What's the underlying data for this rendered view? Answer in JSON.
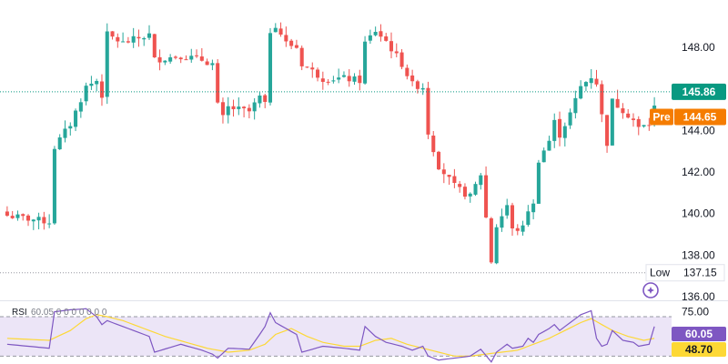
{
  "chart_data": [
    {
      "type": "candlestick",
      "y_axis_ticks": [
        "148.00",
        "146.00",
        "144.00",
        "142.00",
        "140.00",
        "138.00",
        "136.00"
      ],
      "ylim": [
        136,
        150.1
      ],
      "colors": {
        "up": "#26a69a",
        "down": "#ef5350",
        "last_price": "#089981",
        "premarket": "#f57c00",
        "low_line": "#9598a1"
      },
      "last_price": {
        "value": 145.86,
        "label": "145.86"
      },
      "premarket": {
        "label": "Pre",
        "value": 144.65,
        "value_label": "144.65"
      },
      "low": {
        "label": "Low",
        "value": 137.15,
        "value_label": "137.15"
      },
      "close_path": [
        [
          0,
          139.9
        ],
        [
          8,
          139.6
        ],
        [
          9,
          143.2
        ],
        [
          12,
          144.3
        ],
        [
          15,
          146.1
        ],
        [
          17,
          146.4
        ],
        [
          18,
          145.7
        ],
        [
          19,
          148.6
        ],
        [
          22,
          148.2
        ],
        [
          27,
          148.6
        ],
        [
          28,
          147.4
        ],
        [
          33,
          147.6
        ],
        [
          37,
          147.4
        ],
        [
          39,
          147.2
        ],
        [
          40,
          145.2
        ],
        [
          41,
          144.6
        ],
        [
          42,
          145.1
        ],
        [
          46,
          144.9
        ],
        [
          48,
          145.6
        ],
        [
          49,
          145.2
        ],
        [
          50,
          148.8
        ],
        [
          51,
          149.1
        ],
        [
          53,
          148.2
        ],
        [
          55,
          148.0
        ],
        [
          56,
          147.2
        ],
        [
          60,
          146.5
        ],
        [
          64,
          146.5
        ],
        [
          67,
          146.4
        ],
        [
          68,
          148.2
        ],
        [
          70,
          148.8
        ],
        [
          72,
          148.3
        ],
        [
          75,
          147.2
        ],
        [
          77,
          146.2
        ],
        [
          79,
          146.1
        ],
        [
          80,
          143.9
        ],
        [
          82,
          142.3
        ],
        [
          85,
          141.3
        ],
        [
          88,
          140.8
        ],
        [
          90,
          141.9
        ],
        [
          92,
          137.7
        ],
        [
          93,
          139.4
        ],
        [
          95,
          140.4
        ],
        [
          96,
          139.2
        ],
        [
          98,
          139.3
        ],
        [
          99,
          140.2
        ],
        [
          100,
          140.4
        ],
        [
          101,
          142.6
        ],
        [
          103,
          143.5
        ],
        [
          104,
          144.4
        ],
        [
          105,
          143.8
        ],
        [
          107,
          144.8
        ],
        [
          109,
          146.1
        ],
        [
          111,
          146.6
        ],
        [
          112,
          146.3
        ],
        [
          113,
          144.7
        ],
        [
          114,
          143.4
        ],
        [
          115,
          145.4
        ],
        [
          117,
          145.0
        ],
        [
          119,
          144.5
        ],
        [
          120,
          144.1
        ],
        [
          122,
          144.3
        ],
        [
          123,
          145.1
        ]
      ]
    },
    {
      "type": "line",
      "title": "RSI",
      "legend_values": [
        "60.05",
        "0",
        "0",
        "0",
        "0",
        "0",
        "0",
        "0"
      ],
      "y_axis_ticks": [
        "75.00"
      ],
      "ylim": [
        22,
        82
      ],
      "levels": [
        70,
        30
      ],
      "current_value": "60.05",
      "ma_value": "48.70",
      "colors": {
        "rsi": "#7e57c2",
        "ma": "#fdd835",
        "band_fill": "#ece5f7",
        "rsi_tag": "#7e57c2",
        "ma_tag": "#fdd835"
      },
      "rsi_path": [
        [
          0,
          42
        ],
        [
          8,
          38
        ],
        [
          9,
          75
        ],
        [
          12,
          77
        ],
        [
          15,
          78
        ],
        [
          17,
          70
        ],
        [
          18,
          62
        ],
        [
          19,
          66
        ],
        [
          22,
          60
        ],
        [
          27,
          50
        ],
        [
          28,
          34
        ],
        [
          33,
          42
        ],
        [
          37,
          36
        ],
        [
          39,
          32
        ],
        [
          40,
          28
        ],
        [
          42,
          38
        ],
        [
          46,
          37
        ],
        [
          48,
          52
        ],
        [
          49,
          60
        ],
        [
          50,
          74
        ],
        [
          51,
          64
        ],
        [
          53,
          58
        ],
        [
          55,
          52
        ],
        [
          56,
          34
        ],
        [
          60,
          40
        ],
        [
          64,
          38
        ],
        [
          67,
          36
        ],
        [
          68,
          60
        ],
        [
          70,
          50
        ],
        [
          72,
          44
        ],
        [
          75,
          40
        ],
        [
          77,
          36
        ],
        [
          79,
          40
        ],
        [
          80,
          30
        ],
        [
          82,
          26
        ],
        [
          85,
          28
        ],
        [
          88,
          30
        ],
        [
          90,
          37
        ],
        [
          92,
          24
        ],
        [
          93,
          34
        ],
        [
          95,
          42
        ],
        [
          96,
          38
        ],
        [
          98,
          40
        ],
        [
          99,
          48
        ],
        [
          100,
          44
        ],
        [
          101,
          52
        ],
        [
          103,
          58
        ],
        [
          104,
          62
        ],
        [
          105,
          56
        ],
        [
          107,
          64
        ],
        [
          109,
          72
        ],
        [
          111,
          76
        ],
        [
          112,
          48
        ],
        [
          113,
          40
        ],
        [
          114,
          42
        ],
        [
          115,
          56
        ],
        [
          117,
          46
        ],
        [
          119,
          44
        ],
        [
          120,
          40
        ],
        [
          122,
          42
        ],
        [
          123,
          60
        ]
      ],
      "ma_path": [
        [
          0,
          48
        ],
        [
          8,
          46
        ],
        [
          12,
          56
        ],
        [
          15,
          68
        ],
        [
          17,
          72
        ],
        [
          19,
          70
        ],
        [
          22,
          66
        ],
        [
          27,
          56
        ],
        [
          30,
          50
        ],
        [
          34,
          44
        ],
        [
          38,
          38
        ],
        [
          42,
          34
        ],
        [
          46,
          36
        ],
        [
          49,
          42
        ],
        [
          51,
          52
        ],
        [
          54,
          58
        ],
        [
          57,
          50
        ],
        [
          60,
          44
        ],
        [
          64,
          40
        ],
        [
          67,
          40
        ],
        [
          70,
          46
        ],
        [
          73,
          48
        ],
        [
          76,
          42
        ],
        [
          79,
          38
        ],
        [
          82,
          34
        ],
        [
          85,
          30
        ],
        [
          88,
          30
        ],
        [
          91,
          32
        ],
        [
          94,
          34
        ],
        [
          97,
          36
        ],
        [
          100,
          42
        ],
        [
          103,
          48
        ],
        [
          106,
          56
        ],
        [
          109,
          64
        ],
        [
          111,
          68
        ],
        [
          113,
          62
        ],
        [
          115,
          56
        ],
        [
          118,
          50
        ],
        [
          121,
          46
        ],
        [
          123,
          48
        ]
      ]
    }
  ]
}
